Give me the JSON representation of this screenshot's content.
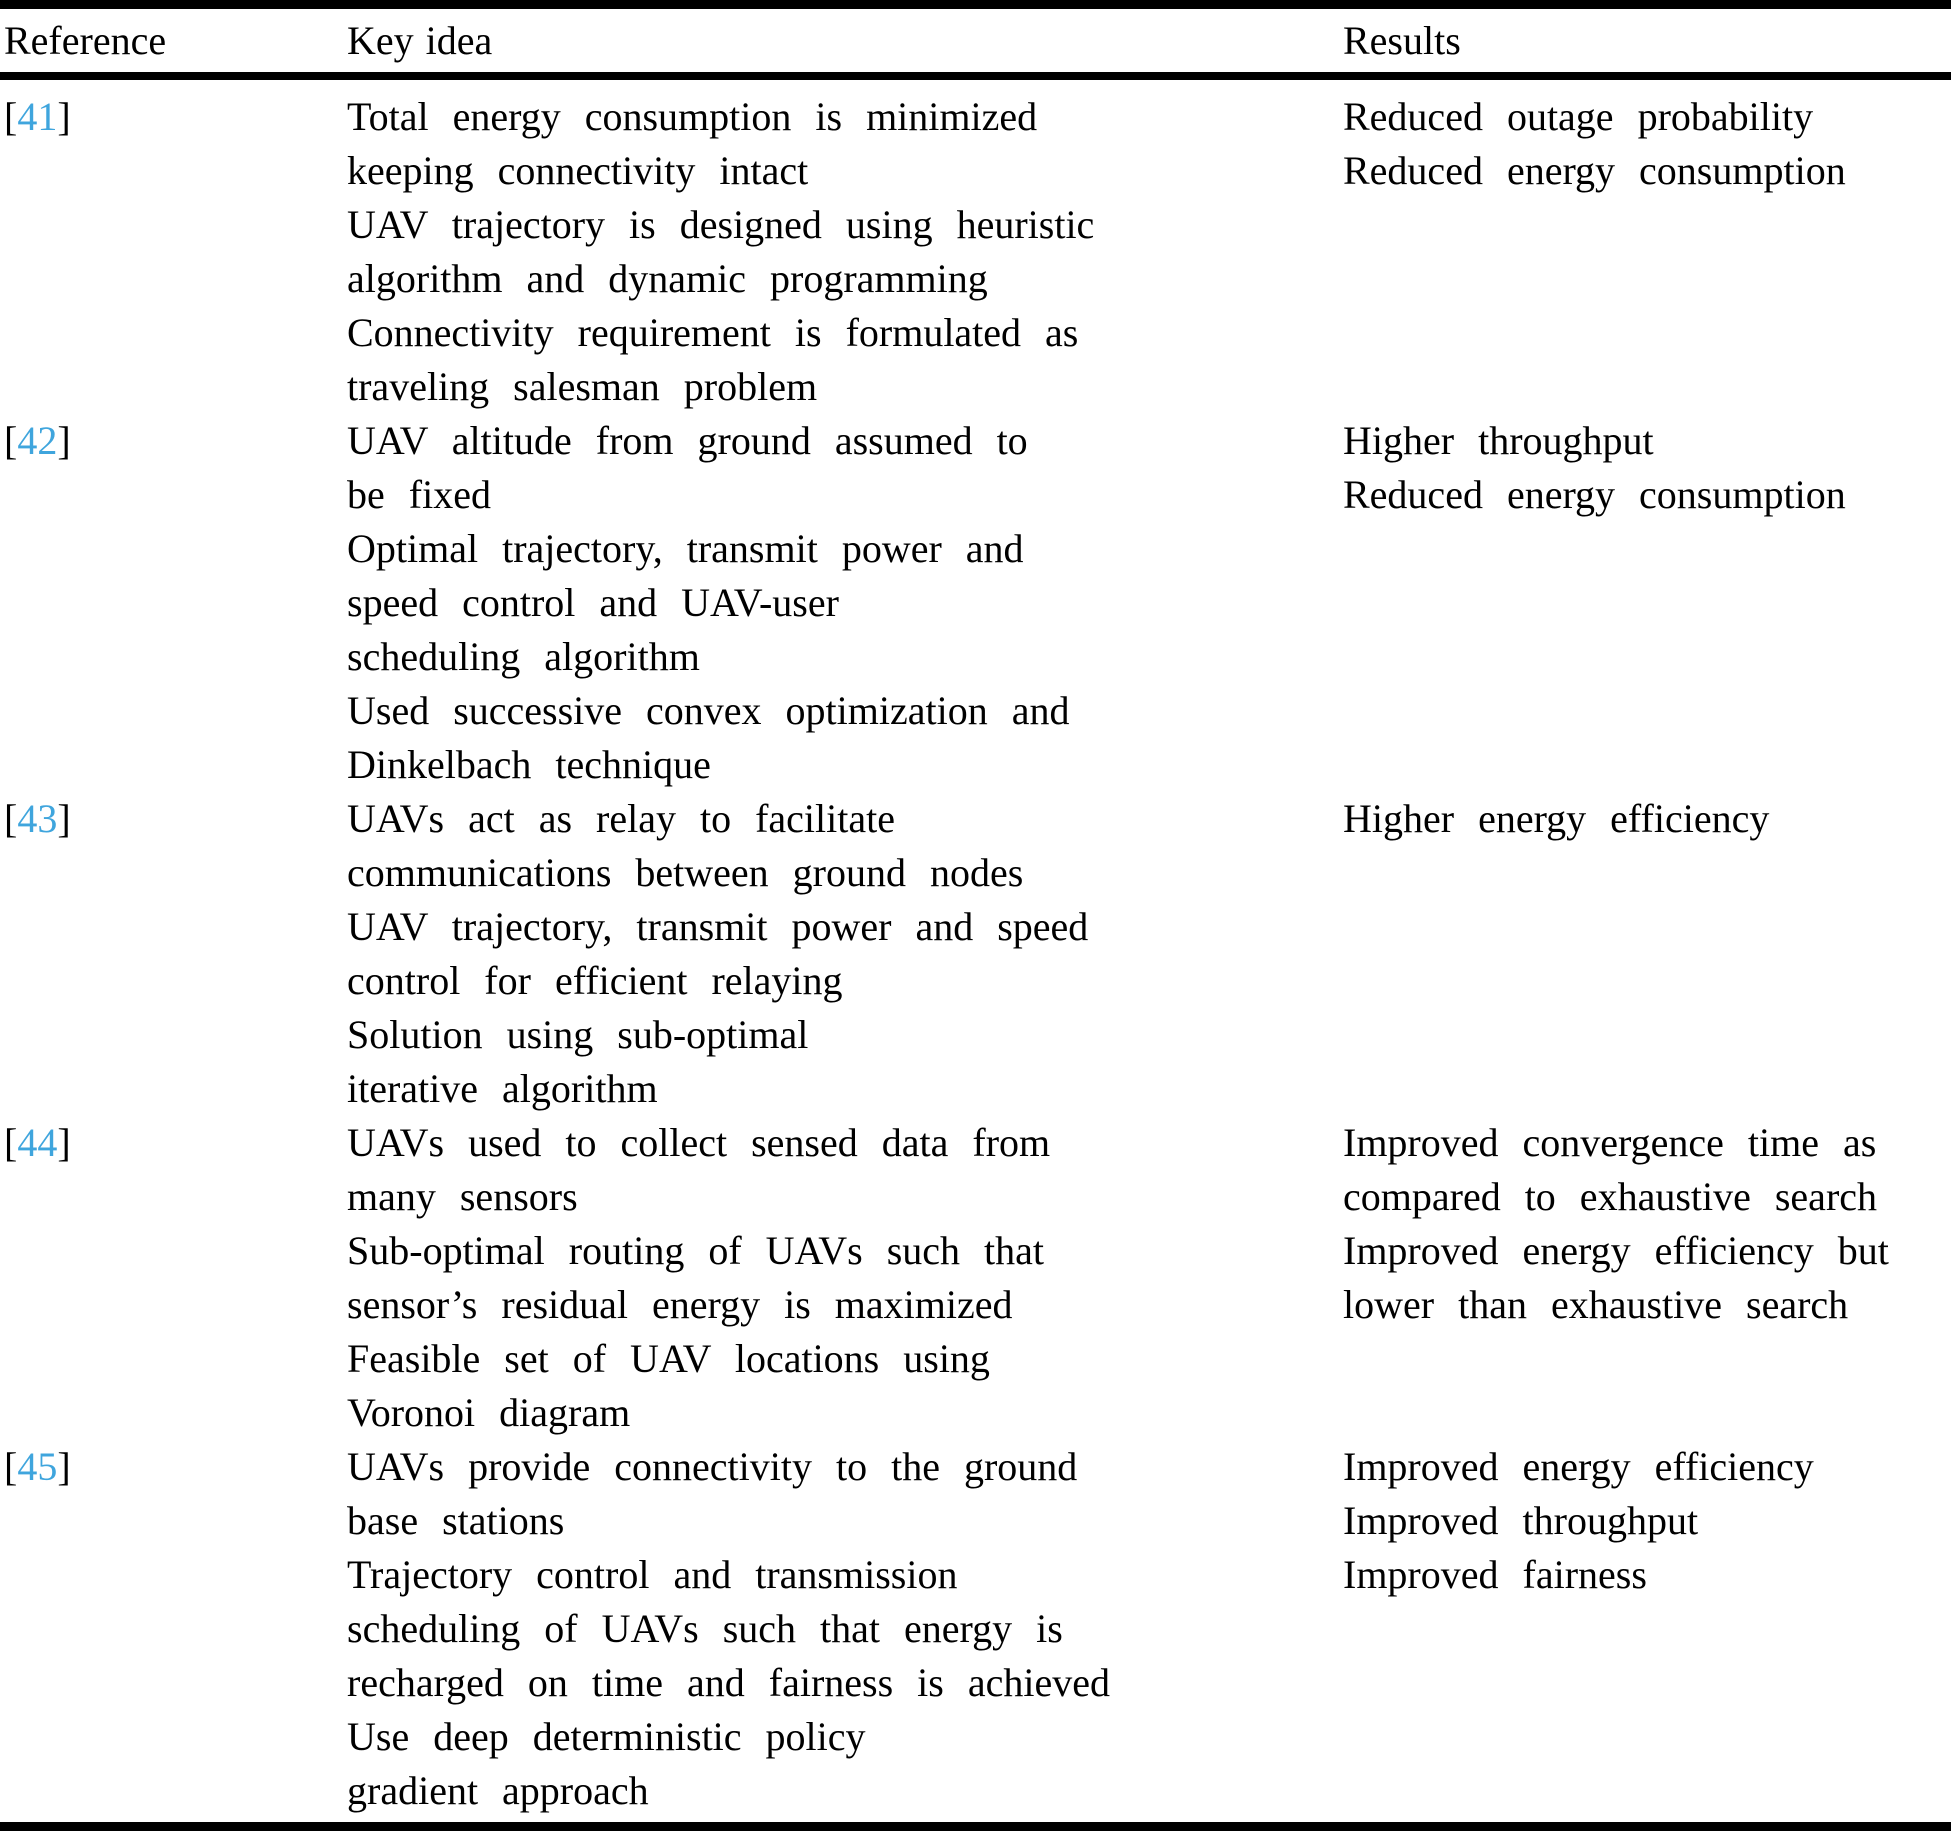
{
  "figure": {
    "type": "table",
    "accent_color": "#3fa5dd",
    "headers": {
      "reference": "Reference",
      "key_idea": "Key idea",
      "results": "Results"
    },
    "ref_bracket_open": "[",
    "ref_bracket_close": "]",
    "rows": [
      {
        "ref": "41",
        "ideas": [
          "Total energy consumption is minimized\nkeeping connectivity intact",
          "UAV trajectory is designed using heuristic\nalgorithm and dynamic programming",
          "Connectivity requirement is formulated as\ntraveling salesman problem"
        ],
        "results": [
          "Reduced outage probability",
          "Reduced energy consumption"
        ]
      },
      {
        "ref": "42",
        "ideas": [
          "UAV altitude from ground assumed to\nbe fixed",
          "Optimal trajectory, transmit power and\nspeed control and UAV-user\nscheduling algorithm",
          "Used successive convex optimization and\nDinkelbach technique"
        ],
        "results": [
          "Higher throughput",
          "Reduced energy consumption"
        ]
      },
      {
        "ref": "43",
        "ideas": [
          "UAVs act as relay to facilitate\ncommunications between ground nodes",
          "UAV trajectory, transmit power and speed\ncontrol for efficient relaying",
          "Solution using sub-optimal\niterative algorithm"
        ],
        "results": [
          "Higher energy efficiency"
        ]
      },
      {
        "ref": "44",
        "ideas": [
          "UAVs used to collect sensed data from\nmany sensors",
          "Sub-optimal routing of UAVs such that\nsensor’s residual energy is maximized",
          "Feasible set of UAV locations using\nVoronoi diagram"
        ],
        "results": [
          "Improved convergence time as\ncompared to exhaustive search",
          "Improved energy efficiency but\nlower than exhaustive search"
        ]
      },
      {
        "ref": "45",
        "ideas": [
          "UAVs provide connectivity to the ground\nbase stations",
          "Trajectory control and transmission\nscheduling of UAVs such that energy is\nrecharged on time and fairness is achieved",
          "Use deep deterministic policy\ngradient approach"
        ],
        "results": [
          "Improved energy efficiency",
          "Improved throughput",
          "Improved fairness"
        ]
      }
    ]
  }
}
